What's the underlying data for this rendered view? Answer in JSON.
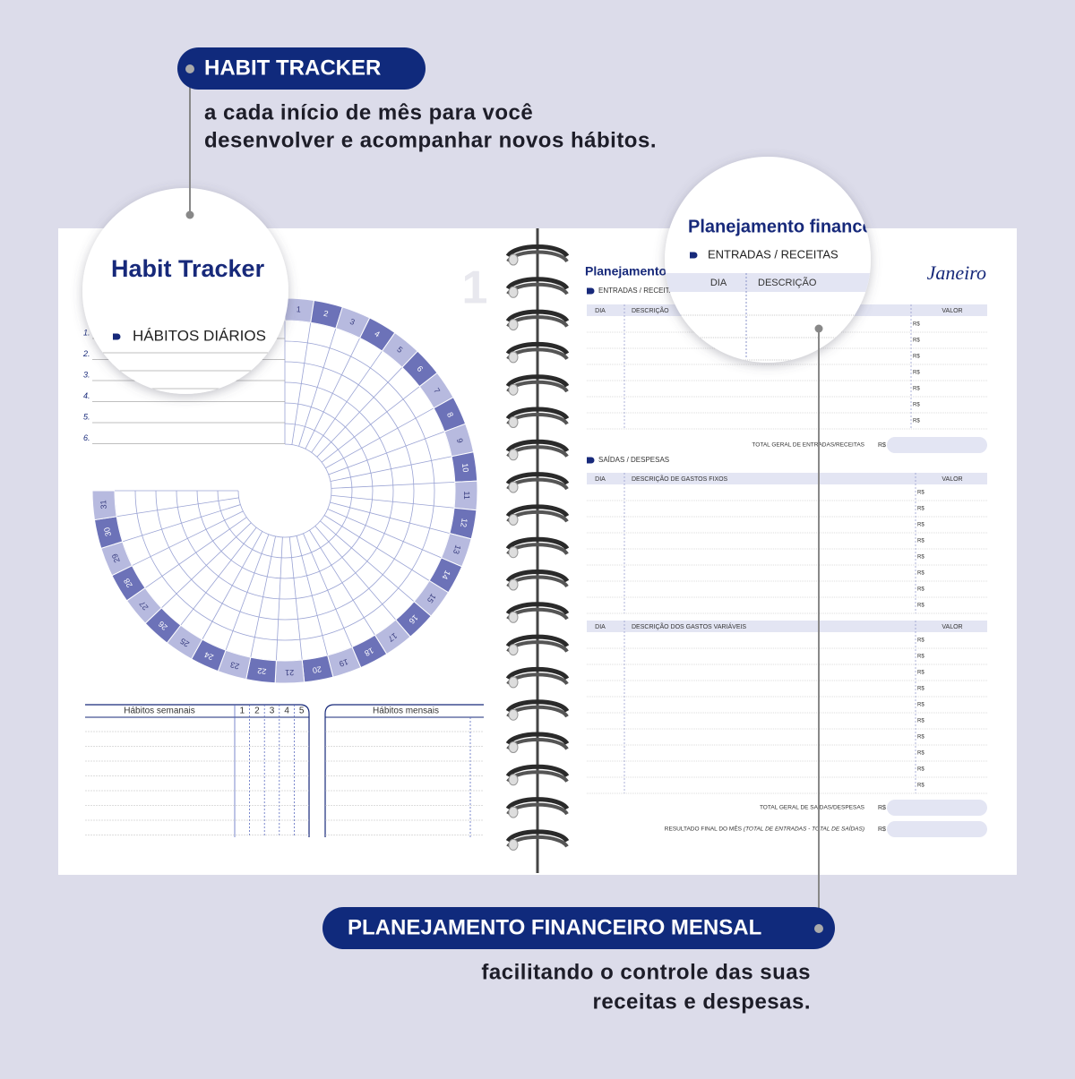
{
  "callouts": [
    {
      "title": "HABIT TRACKER",
      "lines": [
        "a cada início de mês para você",
        "desenvolver e acompanhar novos hábitos."
      ]
    },
    {
      "title": "PLANEJAMENTO FINANCEIRO MENSAL",
      "lines": [
        "facilitando o controle das suas",
        "receitas e despesas."
      ]
    }
  ],
  "left_page": {
    "title": "Habit Tracker",
    "section": "HÁBITOS DIÁRIOS",
    "page_number": "1",
    "habit_numbers": [
      "1.",
      "2.",
      "3.",
      "4.",
      "5.",
      "6."
    ],
    "days": [
      1,
      2,
      3,
      4,
      5,
      6,
      7,
      8,
      9,
      10,
      11,
      12,
      13,
      14,
      15,
      16,
      17,
      18,
      19,
      20,
      21,
      22,
      23,
      24,
      25,
      26,
      27,
      28,
      29,
      30,
      31
    ],
    "weekly": {
      "title": "Hábitos semanais",
      "weeks": [
        1,
        2,
        3,
        4,
        5
      ]
    },
    "monthly": {
      "title": "Hábitos mensais"
    }
  },
  "right_page": {
    "title": "Planejamento financeiro",
    "month": "Janeiro",
    "currency": "R$",
    "income": {
      "label": "ENTRADAS / RECEITAS",
      "columns": [
        "DIA",
        "DESCRIÇÃO",
        "VALOR"
      ],
      "total": "TOTAL GERAL DE ENTRADAS/RECEITAS"
    },
    "expenses": {
      "label": "SAÍDAS / DESPESAS",
      "fixed_columns": [
        "DIA",
        "DESCRIÇÃO DE GASTOS FIXOS",
        "VALOR"
      ],
      "variable_columns": [
        "DIA",
        "DESCRIÇÃO DOS GASTOS VARIÁVEIS",
        "VALOR"
      ],
      "total": "TOTAL GERAL DE SAÍDAS/DESPESAS",
      "result": "RESULTADO FINAL DO MÊS",
      "result_note": "(TOTAL DE ENTRADAS - TOTAL DE SAÍDAS)"
    }
  }
}
